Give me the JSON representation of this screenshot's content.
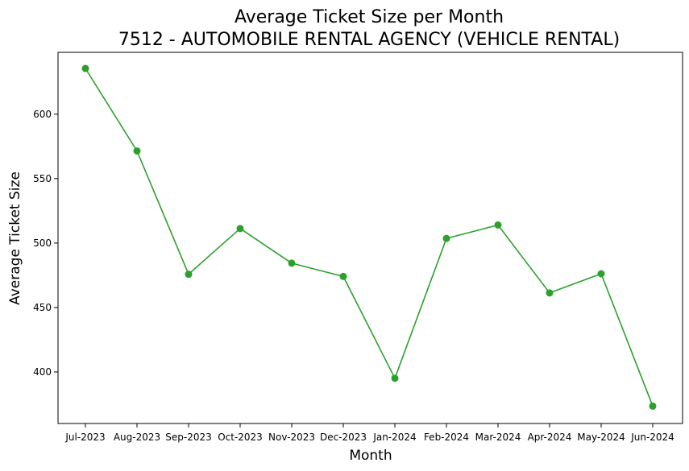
{
  "chart_data": {
    "type": "line",
    "title": "Average Ticket Size per Month",
    "subtitle": "7512 - AUTOMOBILE RENTAL AGENCY (VEHICLE RENTAL)",
    "xlabel": "Month",
    "ylabel": "Average Ticket Size",
    "categories": [
      "Jul-2023",
      "Aug-2023",
      "Sep-2023",
      "Oct-2023",
      "Nov-2023",
      "Dec-2023",
      "Jan-2024",
      "Feb-2024",
      "Mar-2024",
      "Apr-2024",
      "May-2024",
      "Jun-2024"
    ],
    "series": [
      {
        "values": [
          635.5,
          571.5,
          475.8,
          511.3,
          484.4,
          474.1,
          395.1,
          503.6,
          514.0,
          461.3,
          476.2,
          373.5
        ],
        "color": "#2ca02c"
      }
    ],
    "ylim": [
      360,
      648
    ],
    "yticks": [
      400,
      450,
      500,
      550,
      600
    ],
    "grid": false,
    "legend": "none"
  }
}
